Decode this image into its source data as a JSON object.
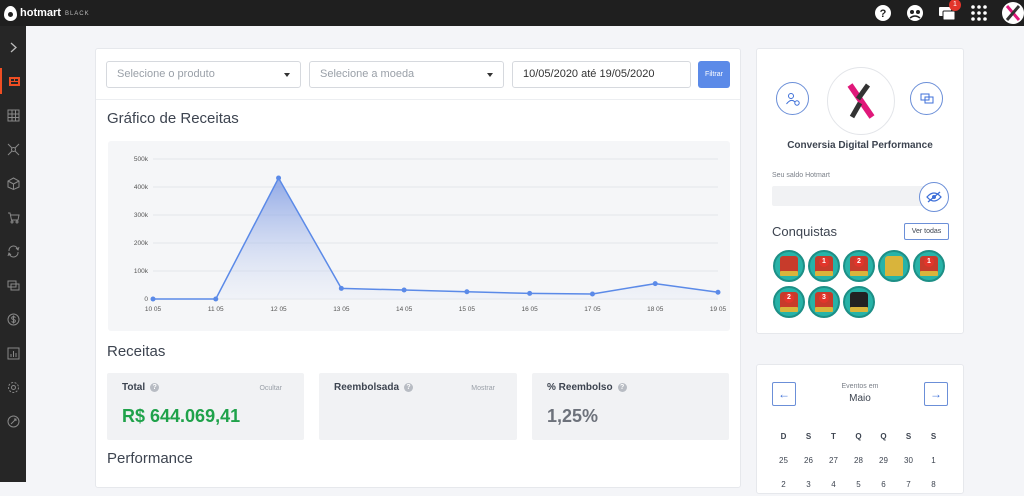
{
  "topbar": {
    "brand": "hotmart",
    "tier": "BLACK",
    "notification_count": "1",
    "icons": [
      "help-icon",
      "community-icon",
      "notifications-icon",
      "apps-grid-icon",
      "user-avatar"
    ]
  },
  "sidebar": {
    "items": [
      "expand-icon",
      "dashboard-icon",
      "grid-icon",
      "network-icon",
      "box-icon",
      "cart-icon",
      "refresh-icon",
      "chat-icon",
      "dollar-icon",
      "bar-chart-icon",
      "settings-icon",
      "tools-icon"
    ],
    "active_index": 1,
    "accent": "#ef4e23"
  },
  "filters": {
    "product_placeholder": "Selecione o produto",
    "currency_placeholder": "Selecione a moeda",
    "date_range": "10/05/2020 até 19/05/2020",
    "filter_label": "Filtrar"
  },
  "sections": {
    "chart_title": "Gráfico de Receitas",
    "revenue_title": "Receitas",
    "performance_title": "Performance"
  },
  "chart_data": {
    "type": "area",
    "x": [
      "10 05",
      "11 05",
      "12 05",
      "13 05",
      "14 05",
      "15 05",
      "16 05",
      "17 05",
      "18 05",
      "19 05"
    ],
    "y_ticks": [
      "0",
      "100k",
      "200k",
      "300k",
      "400k",
      "500k"
    ],
    "ylim": [
      0,
      500000
    ],
    "values": [
      0,
      0,
      432000,
      38000,
      32000,
      26000,
      20000,
      18000,
      55000,
      24000
    ],
    "grid": true,
    "line_color": "#5b8ae8"
  },
  "cards": [
    {
      "label": "Total",
      "action": "Ocultar",
      "value": "R$ 644.069,41",
      "value_color": "#1fa24a"
    },
    {
      "label": "Reembolsada",
      "action": "Mostrar",
      "value": ""
    },
    {
      "label": "% Reembolso",
      "action": "",
      "value": "1,25%",
      "value_color": "#6d727b"
    }
  ],
  "profile": {
    "company": "Conversia Digital Performance",
    "balance_label": "Seu saldo Hotmart",
    "achievements_title": "Conquistas",
    "see_all_label": "Ver todas",
    "achievements": [
      {
        "name": "achievement-badge-check",
        "label": ""
      },
      {
        "name": "achievement-badge-1",
        "label": "1"
      },
      {
        "name": "achievement-badge-2",
        "label": "2"
      },
      {
        "name": "achievement-badge-trophy",
        "label": ""
      },
      {
        "name": "achievement-badge-1",
        "label": "1"
      },
      {
        "name": "achievement-badge-2",
        "label": "2"
      },
      {
        "name": "achievement-badge-3",
        "label": "3"
      },
      {
        "name": "achievement-badge-ninja",
        "label": ""
      }
    ]
  },
  "calendar": {
    "events_label": "Eventos em",
    "month": "Maio",
    "weekdays": [
      "D",
      "S",
      "T",
      "Q",
      "Q",
      "S",
      "S"
    ],
    "rows": [
      [
        "25",
        "26",
        "27",
        "28",
        "29",
        "30",
        "1"
      ],
      [
        "2",
        "3",
        "4",
        "5",
        "6",
        "7",
        "8"
      ]
    ]
  }
}
